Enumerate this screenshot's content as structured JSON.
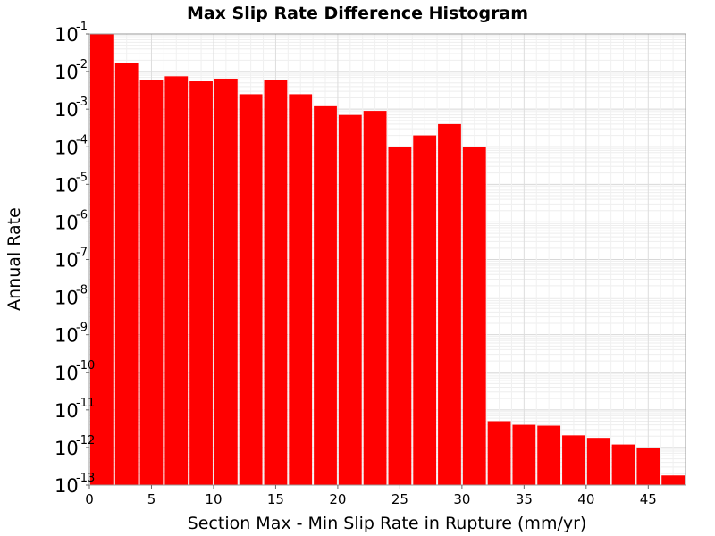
{
  "chart_data": {
    "type": "bar",
    "title": "Max Slip Rate Difference Histogram",
    "xlabel": "Section Max - Min Slip Rate in Rupture (mm/yr)",
    "ylabel": "Annual Rate",
    "x_ticks": [
      "0",
      "5",
      "10",
      "15",
      "20",
      "25",
      "30",
      "35",
      "40",
      "45"
    ],
    "y_ticks": [
      {
        "base": "10",
        "exp": "-1"
      },
      {
        "base": "10",
        "exp": "-2"
      },
      {
        "base": "10",
        "exp": "-3"
      },
      {
        "base": "10",
        "exp": "-4"
      },
      {
        "base": "10",
        "exp": "-5"
      },
      {
        "base": "10",
        "exp": "-6"
      },
      {
        "base": "10",
        "exp": "-7"
      },
      {
        "base": "10",
        "exp": "-8"
      },
      {
        "base": "10",
        "exp": "-9"
      },
      {
        "base": "10",
        "exp": "-10"
      },
      {
        "base": "10",
        "exp": "-11"
      },
      {
        "base": "10",
        "exp": "-12"
      },
      {
        "base": "10",
        "exp": "-13"
      }
    ],
    "xlim": [
      0,
      48
    ],
    "ylim": [
      1e-13,
      0.1
    ],
    "yscale": "log",
    "bin_width": 2,
    "x": [
      1,
      3,
      5,
      7,
      9,
      11,
      13,
      15,
      17,
      19,
      21,
      23,
      25,
      27,
      29,
      31,
      33,
      35,
      37,
      39,
      41,
      43,
      45,
      47
    ],
    "values": [
      0.1,
      0.017,
      0.006,
      0.0075,
      0.0055,
      0.0065,
      0.0025,
      0.006,
      0.0025,
      0.0012,
      0.0007,
      0.0009,
      0.0001,
      0.0002,
      0.0004,
      0.0001,
      5e-12,
      4e-12,
      3.8e-12,
      2.1e-12,
      1.8e-12,
      1.2e-12,
      9.5e-13,
      1.8e-13
    ],
    "bar_color": "#ff0000",
    "grid": true,
    "legend": "none"
  }
}
